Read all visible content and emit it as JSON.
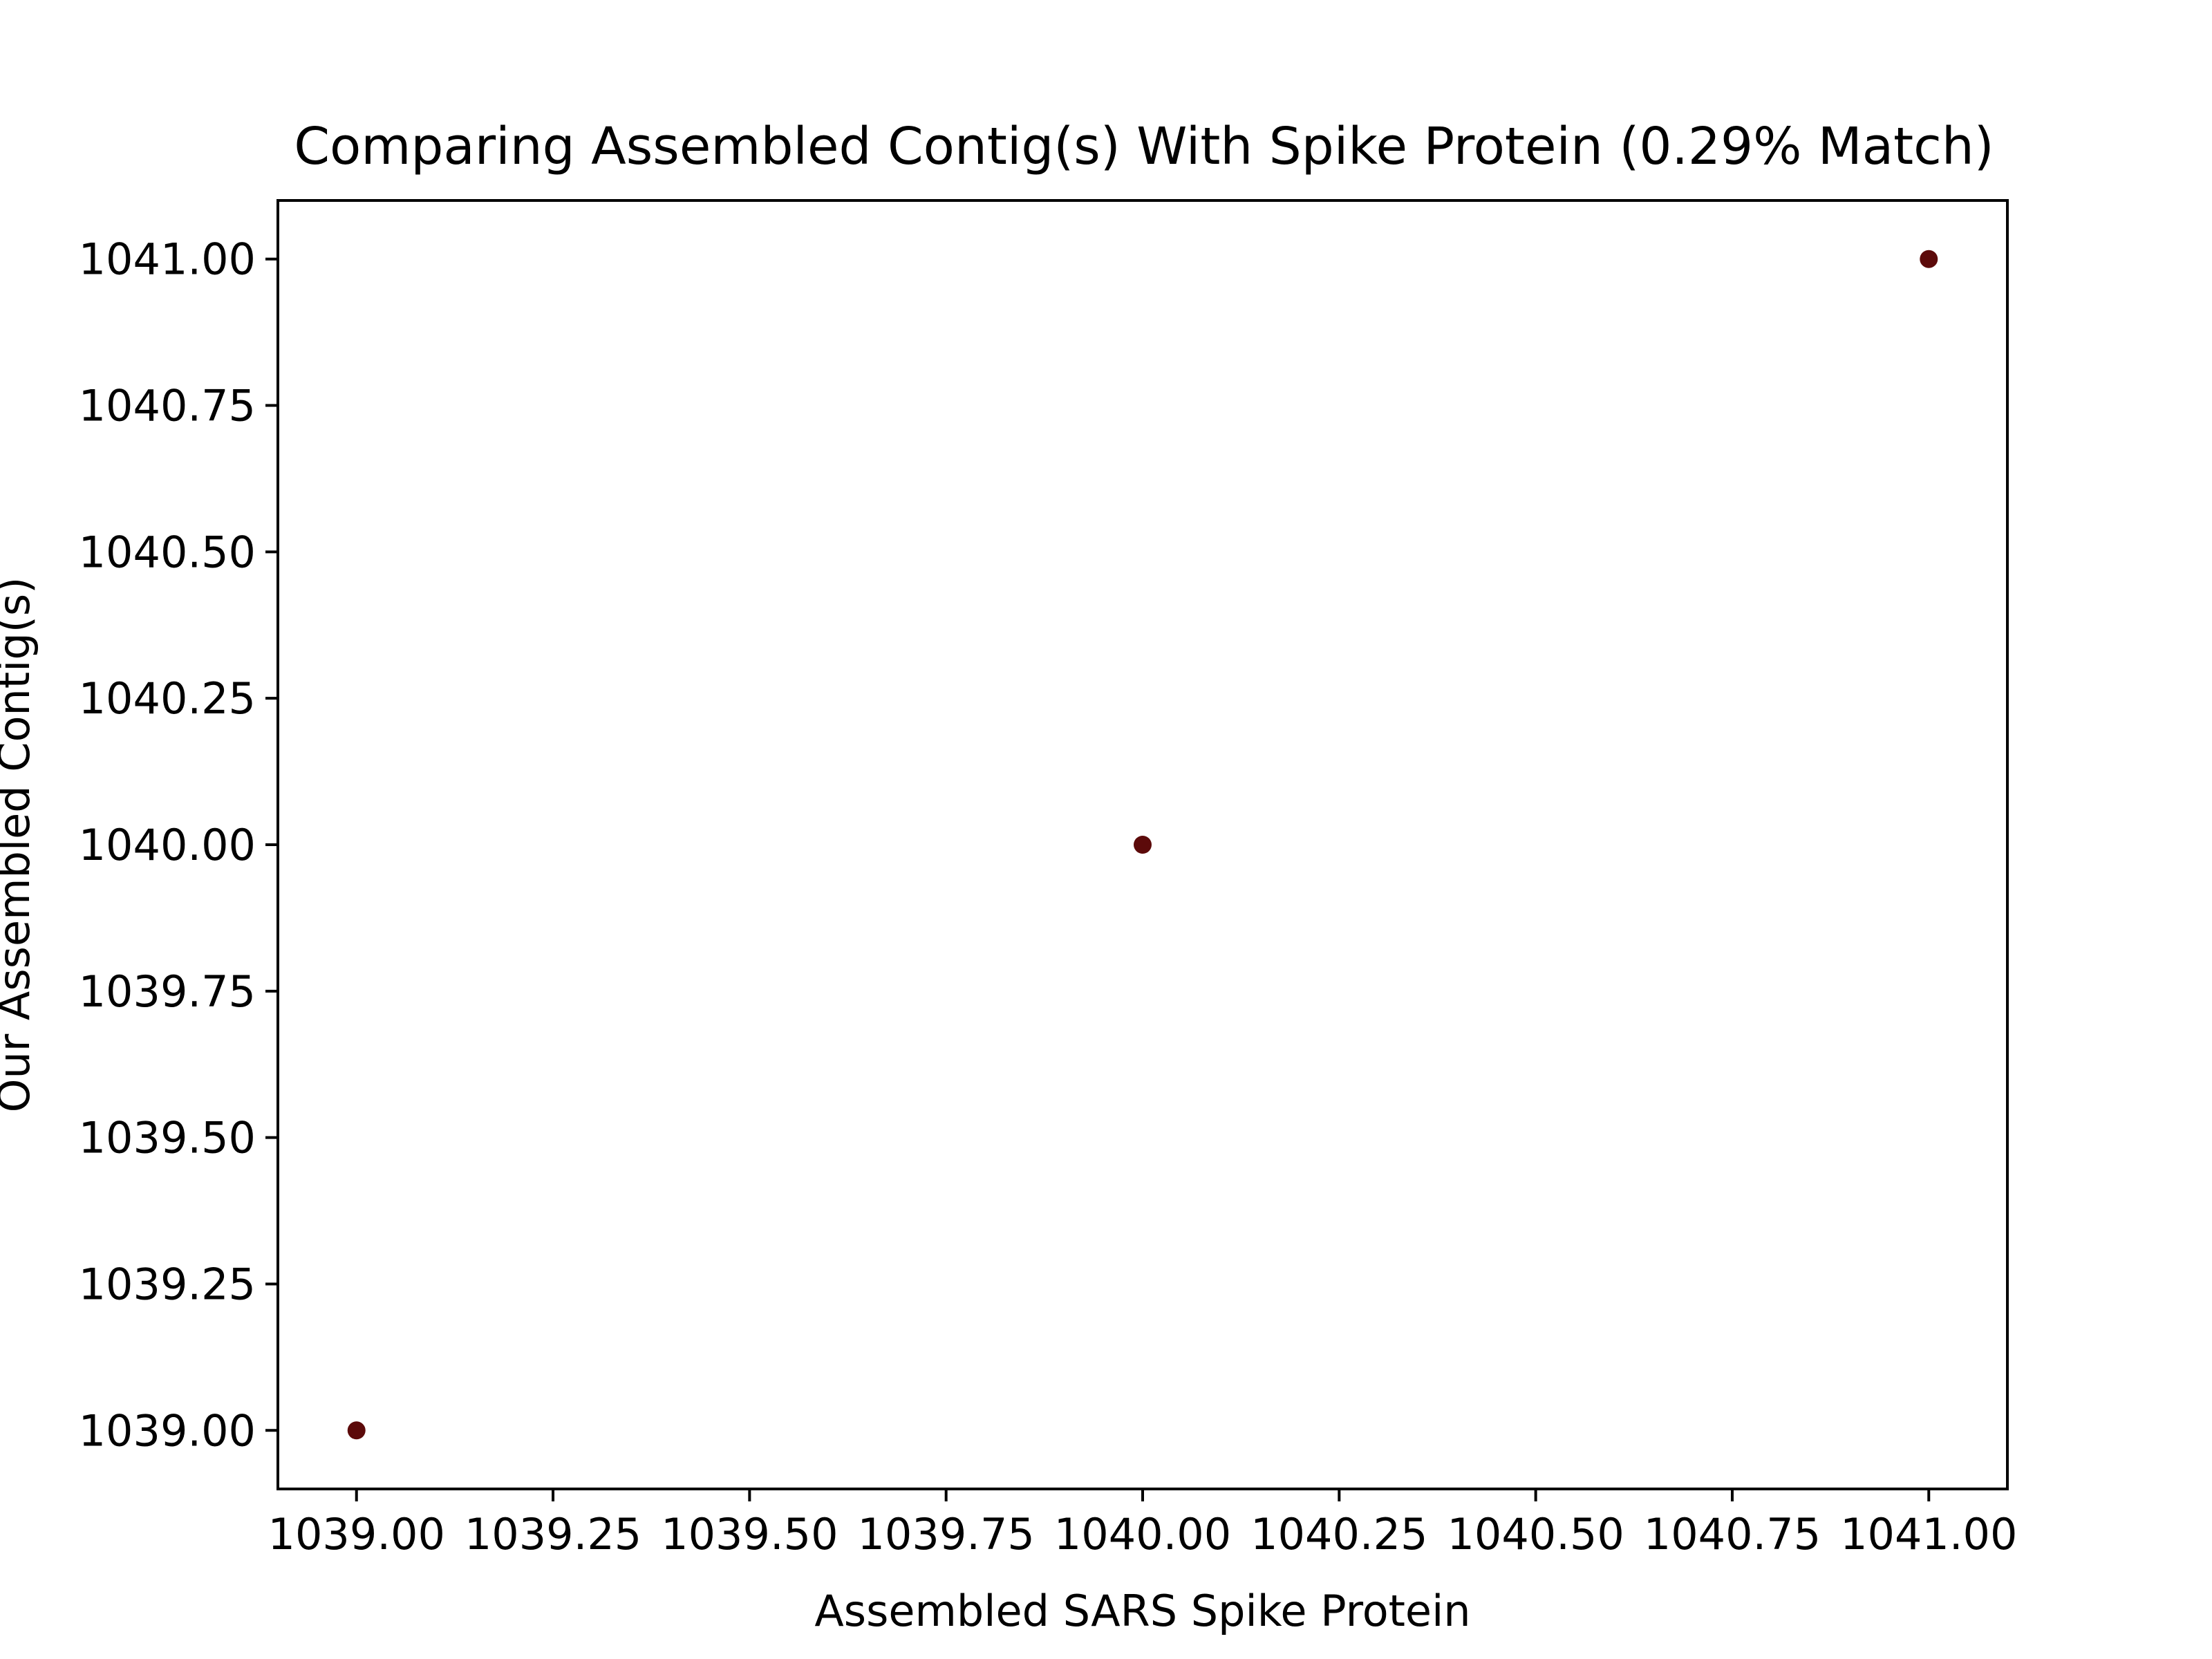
{
  "chart_data": {
    "type": "scatter",
    "title": "Comparing Assembled Contig(s) With Spike Protein (0.29% Match)",
    "xlabel": "Assembled SARS Spike Protein",
    "ylabel": "Our Assembled Contig(s)",
    "xlim": [
      1038.9,
      1041.1
    ],
    "ylim": [
      1038.9,
      1041.1
    ],
    "xticks": [
      1039.0,
      1039.25,
      1039.5,
      1039.75,
      1040.0,
      1040.25,
      1040.5,
      1040.75,
      1041.0
    ],
    "xtick_labels": [
      "1039.00",
      "1039.25",
      "1039.50",
      "1039.75",
      "1040.00",
      "1040.25",
      "1040.50",
      "1040.75",
      "1041.00"
    ],
    "yticks": [
      1039.0,
      1039.25,
      1039.5,
      1039.75,
      1040.0,
      1040.25,
      1040.5,
      1040.75,
      1041.0
    ],
    "ytick_labels": [
      "1039.00",
      "1039.25",
      "1039.50",
      "1039.75",
      "1040.00",
      "1040.25",
      "1040.50",
      "1040.75",
      "1041.00"
    ],
    "grid": false,
    "legend": false,
    "series": [
      {
        "color": "#5c0a0a",
        "points": [
          {
            "x": 1039.0,
            "y": 1039.0
          },
          {
            "x": 1040.0,
            "y": 1040.0
          },
          {
            "x": 1041.0,
            "y": 1041.0
          }
        ]
      }
    ]
  }
}
